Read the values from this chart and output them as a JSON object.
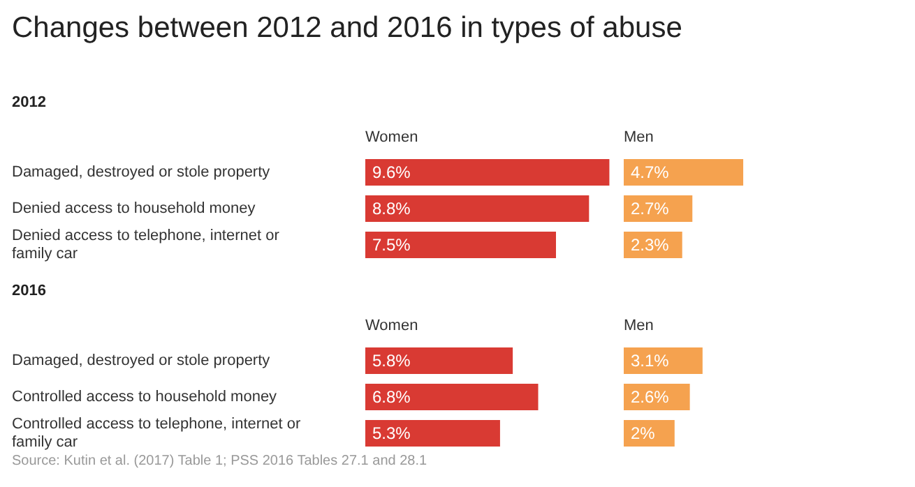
{
  "chart_data": [
    {
      "type": "bar",
      "orientation": "horizontal",
      "title": "Changes between 2012 and 2016 in types of abuse",
      "subtitle": "2012",
      "categories": [
        "Damaged, destroyed or stole property",
        "Denied access to household money",
        "Denied access to telephone, internet or family car"
      ],
      "series": [
        {
          "name": "Women",
          "color": "#d93a33",
          "values": [
            9.6,
            8.8,
            7.5
          ],
          "value_labels": [
            "9.6%",
            "8.8%",
            "7.5%"
          ]
        }
      ]
    },
    {
      "type": "bar",
      "orientation": "horizontal",
      "categories": [
        null,
        null,
        null
      ],
      "series": [
        {
          "name": "Men",
          "color": "#f5a24f",
          "values": [
            4.7,
            2.7,
            2.3
          ],
          "value_labels": [
            "4.7%",
            "2.7%",
            "2.3%"
          ]
        }
      ]
    },
    {
      "type": "bar",
      "orientation": "horizontal",
      "title": "2016",
      "categories": [
        "Damaged, destroyed or stole property",
        "Controlled access to household money",
        "Controlled access to telephone, internet or family car"
      ],
      "series": [
        {
          "name": "Women",
          "color": "#d93a33",
          "values": [
            5.8,
            6.8,
            5.3
          ],
          "value_labels": [
            "5.8%",
            "6.8%",
            "5.3%"
          ]
        }
      ],
      "annotations": [
        "Source: Kutin et al. (2017) Table 1; PSS 2016 Tables 27.1 and 28.1"
      ]
    },
    {
      "type": "bar",
      "orientation": "horizontal",
      "categories": [
        null,
        null,
        null
      ],
      "series": [
        {
          "name": "Men",
          "color": "#f5a24f",
          "values": [
            3.1,
            2.6,
            2.0
          ],
          "value_labels": [
            "3.1%",
            "2.6%",
            "2%"
          ]
        }
      ]
    }
  ]
}
